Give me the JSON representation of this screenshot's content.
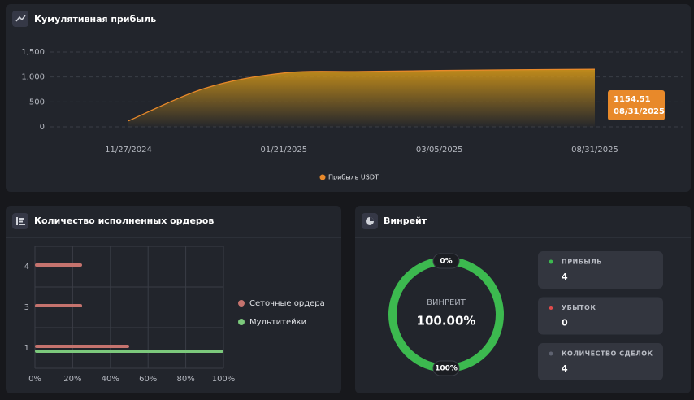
{
  "chart_data": [
    {
      "type": "area",
      "title": "Кумулятивная прибыль",
      "categories": [
        "11/27/2024",
        null,
        "01/21/2025",
        null,
        "03/05/2025",
        null,
        "08/31/2025"
      ],
      "series": [
        {
          "name": "Прибыль USDT",
          "color": "#e8892a",
          "values": [
            120,
            780,
            1080,
            1110,
            1130,
            1145,
            1154.51
          ]
        }
      ],
      "ylim": [
        0,
        1500
      ],
      "yticks": [
        0,
        500,
        {
          "value": 1000,
          "label": "1,000"
        },
        {
          "value": 1500,
          "label": "1,500"
        }
      ],
      "grid": true
    },
    {
      "type": "horizontal_bar",
      "title": "Количество исполненных ордеров",
      "categories": [
        "4",
        "3",
        "1"
      ],
      "series": [
        {
          "name": "Сеточные ордера",
          "color": "#c5736e",
          "values": [
            25,
            25,
            50
          ]
        },
        {
          "name": "Мультитейки",
          "color": "#7cc97c",
          "values": [
            0,
            0,
            100
          ]
        }
      ],
      "xlim": [
        0,
        100
      ],
      "xticks": [
        {
          "value": 0,
          "label": "0%"
        },
        {
          "value": 20,
          "label": "20%"
        },
        {
          "value": 40,
          "label": "40%"
        },
        {
          "value": 60,
          "label": "60%"
        },
        {
          "value": 80,
          "label": "80%"
        },
        {
          "value": 100,
          "label": "100%"
        }
      ],
      "grid": true
    },
    {
      "type": "donut",
      "title": "Винрейт",
      "label": "ВИНРЕЙТ",
      "values": [
        100
      ],
      "value_labels": [
        "100.00%"
      ],
      "color": "#3cb94f",
      "ticks": [
        {
          "value": 0,
          "label": "0%"
        },
        {
          "value": 100,
          "label": "100%"
        }
      ],
      "stats": [
        {
          "label": "ПРИБЫЛЬ",
          "value": 4,
          "color": "#3cb94f"
        },
        {
          "label": "УБЫТОК",
          "value": 0,
          "color": "#e04b4b"
        },
        {
          "label": "КОЛИЧЕСТВО СДЕЛОК",
          "value": 4,
          "color": "#5e6270"
        }
      ]
    }
  ]
}
